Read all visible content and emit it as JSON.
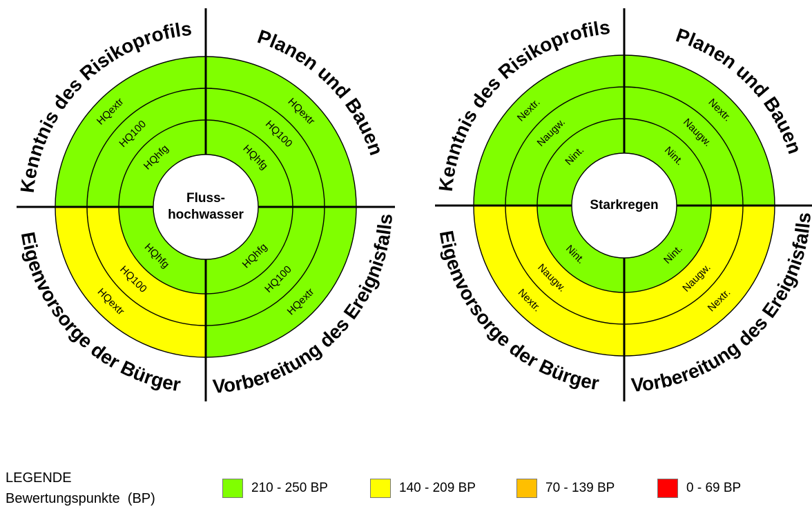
{
  "colors": {
    "green": "#80ff00",
    "yellow": "#ffff00",
    "orange": "#ffbf00",
    "red": "#ff0000"
  },
  "diagrams": [
    {
      "center_label": [
        "Fluss-",
        "hochwasser"
      ],
      "quadrants": {
        "top_left": "Kenntnis des Risikoprofils",
        "top_right": "Planen und Bauen",
        "bottom_left": "Eigenvorsorge der Bürger",
        "bottom_right": "Vorbereitung des Ereignisfalls"
      },
      "ring_labels": [
        "HQhfg",
        "HQ100",
        "HQextr"
      ],
      "ring_colors": {
        "top_left": [
          "green",
          "green",
          "green"
        ],
        "top_right": [
          "green",
          "green",
          "green"
        ],
        "bottom_left": [
          "green",
          "yellow",
          "yellow"
        ],
        "bottom_right": [
          "green",
          "green",
          "green"
        ]
      }
    },
    {
      "center_label": [
        "Starkregen"
      ],
      "quadrants": {
        "top_left": "Kenntnis des Risikoprofils",
        "top_right": "Planen und Bauen",
        "bottom_left": "Eigenvorsorge der Bürger",
        "bottom_right": "Vorbereitung des Ereignisfalls"
      },
      "ring_labels": [
        "Nint.",
        "Naugw.",
        "Nextr."
      ],
      "ring_colors": {
        "top_left": [
          "green",
          "green",
          "green"
        ],
        "top_right": [
          "green",
          "green",
          "green"
        ],
        "bottom_left": [
          "green",
          "yellow",
          "yellow"
        ],
        "bottom_right": [
          "green",
          "yellow",
          "yellow"
        ]
      }
    }
  ],
  "legend": {
    "title": "LEGENDE",
    "subtitle": "Bewertungspunkte  (BP)",
    "items": [
      {
        "label": "210 - 250 BP",
        "color": "green"
      },
      {
        "label": "140 - 209 BP",
        "color": "yellow"
      },
      {
        "label": "70 - 139 BP",
        "color": "orange"
      },
      {
        "label": "0 - 69 BP",
        "color": "red"
      }
    ]
  }
}
